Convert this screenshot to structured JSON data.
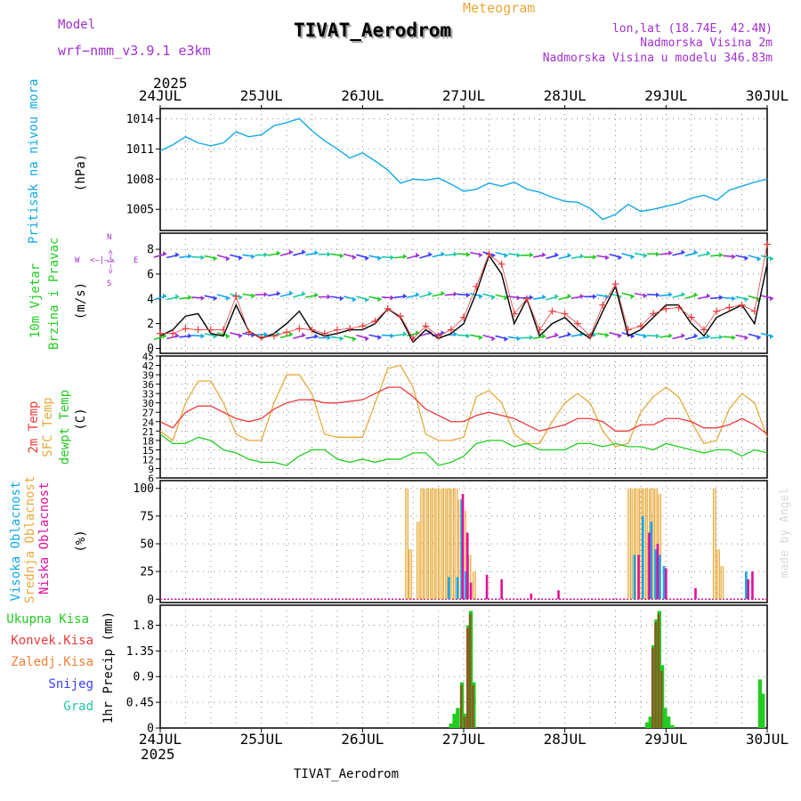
{
  "colors": {
    "purple": "#a030d0",
    "orange": "#e8a93a",
    "cyan": "#12a8e8",
    "green": "#22cc22",
    "red": "#e83c3c",
    "blue": "#3c3cff",
    "magenta": "#e0109a",
    "black": "#000000",
    "faint": "#d8d8d8",
    "teal": "#20c8a8"
  },
  "header": {
    "model_label": "Model",
    "model_name": "wrf−nmm_v3.9.1  e3km",
    "meteogram": "Meteogram",
    "station": "TIVAT_Aerodrom",
    "lonlat": "lon,lat (18.74E, 42.4N)",
    "height": "Nadmorska Visina 2m",
    "model_height": "Nadmorska Visina u modelu 346.83m",
    "footer": "TIVAT_Aerodrom",
    "credit": "made by Angel",
    "year": "2025"
  },
  "time_axis": {
    "labels": [
      "24JUL",
      "25JUL",
      "26JUL",
      "27JUL",
      "28JUL",
      "29JUL",
      "30JUL"
    ],
    "year": "2025"
  },
  "panels": {
    "pressure": {
      "title": "Pritisak na nivou mora",
      "unit": "(hPa)",
      "ticks": [
        "1005",
        "1008",
        "1011",
        "1014"
      ]
    },
    "wind": {
      "title1": "10m Vjetar",
      "title2": "Brzina i Pravac",
      "unit": "(m/s)",
      "ticks": [
        "0",
        "2",
        "4",
        "6",
        "8"
      ],
      "compass_w": "W",
      "compass_e": "E",
      "compass_n": "N",
      "compass_s": "S",
      "compass_h": "<—|—>",
      "compass_v": "<—|—>"
    },
    "temperature": {
      "title1": "2m Temp",
      "title2": "SFC Temp",
      "title3": "dewpt Temp",
      "unit": "(C)",
      "ticks": [
        "6",
        "9",
        "12",
        "15",
        "18",
        "21",
        "24",
        "27",
        "30",
        "33",
        "36",
        "39",
        "42",
        "45"
      ]
    },
    "clouds": {
      "title1": "Visoka Oblacnost",
      "title2": "Srednja Oblacnost",
      "title3": "Niska Oblacnost",
      "unit": "(%)",
      "ticks": [
        "0",
        "25",
        "50",
        "75",
        "100"
      ]
    },
    "precip": {
      "legend": [
        "Ukupna Kisa",
        "Konvek.Kisa",
        "Zaledj.Kisa",
        "Snijeg",
        "Grad"
      ],
      "unit": "1hr Precip (mm)",
      "ticks": [
        "0",
        "0.45",
        "0.9",
        "1.35",
        "1.8"
      ]
    }
  },
  "chart_data": [
    {
      "type": "line",
      "title": "Pritisak na nivou mora",
      "ylabel": "(hPa)",
      "x_unit": "hours from 24JUL 00UTC",
      "ylim": [
        1002.9,
        1015
      ],
      "series": [
        {
          "name": "SLP",
          "color": "#12a8e8",
          "x": [
            0,
            3,
            6,
            9,
            12,
            15,
            18,
            21,
            24,
            27,
            30,
            33,
            36,
            39,
            42,
            45,
            48,
            51,
            54,
            57,
            60,
            63,
            66,
            69,
            72,
            75,
            78,
            81,
            84,
            87,
            90,
            93,
            96,
            99,
            102,
            105,
            108,
            111,
            114,
            117,
            120,
            123,
            126,
            129,
            132,
            135,
            138,
            141,
            144
          ],
          "y": [
            1010.8,
            1011.4,
            1012.2,
            1011.6,
            1011.3,
            1011.6,
            1012.7,
            1012.2,
            1012.4,
            1013.3,
            1013.6,
            1014.0,
            1012.8,
            1011.8,
            1011.0,
            1010.1,
            1010.6,
            1009.8,
            1008.9,
            1007.6,
            1008.0,
            1007.9,
            1008.1,
            1007.5,
            1006.8,
            1007.0,
            1007.6,
            1007.3,
            1007.7,
            1007.0,
            1006.7,
            1006.2,
            1005.8,
            1005.7,
            1005.1,
            1004.0,
            1004.5,
            1005.5,
            1004.8,
            1005.0,
            1005.3,
            1005.6,
            1006.1,
            1006.4,
            1005.9,
            1006.9,
            1007.3,
            1007.7,
            1008.0
          ]
        }
      ]
    },
    {
      "type": "line",
      "title": "10m Vjetar Brzina i Pravac",
      "ylabel": "(m/s)",
      "ylim": [
        0,
        9
      ],
      "series": [
        {
          "name": "wind speed",
          "color": "#000000",
          "x": [
            0,
            3,
            6,
            9,
            12,
            15,
            18,
            21,
            24,
            27,
            30,
            33,
            36,
            39,
            42,
            45,
            48,
            51,
            54,
            57,
            60,
            63,
            66,
            69,
            72,
            75,
            78,
            81,
            84,
            87,
            90,
            93,
            96,
            99,
            102,
            105,
            108,
            111,
            114,
            117,
            120,
            123,
            126,
            129,
            132,
            135,
            138,
            141,
            144
          ],
          "y": [
            1.0,
            1.5,
            2.6,
            2.8,
            1.2,
            1.0,
            3.5,
            1.4,
            0.8,
            1.2,
            2.0,
            3.0,
            1.4,
            1.0,
            1.2,
            1.5,
            1.5,
            2.0,
            3.2,
            2.5,
            0.5,
            1.5,
            0.8,
            1.2,
            2.0,
            4.5,
            7.5,
            6.0,
            2.0,
            4.0,
            1.0,
            2.0,
            2.5,
            1.5,
            0.8,
            3.0,
            5.0,
            1.0,
            1.5,
            2.5,
            3.5,
            3.5,
            2.0,
            1.0,
            2.5,
            3.0,
            3.5,
            2.0,
            6.8
          ]
        },
        {
          "name": "wind gust",
          "color": "#e83c3c",
          "marker": "+",
          "x": [
            0,
            3,
            6,
            9,
            12,
            15,
            18,
            21,
            24,
            27,
            30,
            33,
            36,
            39,
            42,
            45,
            48,
            51,
            54,
            57,
            60,
            63,
            66,
            69,
            72,
            75,
            78,
            81,
            84,
            87,
            90,
            93,
            96,
            99,
            102,
            105,
            108,
            111,
            114,
            117,
            120,
            123,
            126,
            129,
            132,
            135,
            138,
            141,
            144
          ],
          "y": [
            1.2,
            1.2,
            1.6,
            1.5,
            1.5,
            1.5,
            4.2,
            1.3,
            0.9,
            1.0,
            1.3,
            1.6,
            1.5,
            1.2,
            1.5,
            1.6,
            1.8,
            2.2,
            3.2,
            2.6,
            0.8,
            1.8,
            1.0,
            1.5,
            2.5,
            5.0,
            7.6,
            6.8,
            2.8,
            4.0,
            1.5,
            3.0,
            2.8,
            2.0,
            1.0,
            3.5,
            5.2,
            1.5,
            1.8,
            2.8,
            3.2,
            3.3,
            2.5,
            1.5,
            3.0,
            3.3,
            3.5,
            3.0,
            8.4
          ]
        }
      ]
    },
    {
      "type": "line",
      "title": "2m Temp / SFC Temp / dewpt Temp",
      "ylabel": "(C)",
      "ylim": [
        6,
        45
      ],
      "series": [
        {
          "name": "2m Temp",
          "color": "#e83c3c",
          "x": [
            0,
            3,
            6,
            9,
            12,
            15,
            18,
            21,
            24,
            27,
            30,
            33,
            36,
            39,
            42,
            45,
            48,
            51,
            54,
            57,
            60,
            63,
            66,
            69,
            72,
            75,
            78,
            81,
            84,
            87,
            90,
            93,
            96,
            99,
            102,
            105,
            108,
            111,
            114,
            117,
            120,
            123,
            126,
            129,
            132,
            135,
            138,
            141,
            144
          ],
          "y": [
            24,
            22,
            27,
            29,
            29,
            27,
            25,
            24,
            25,
            28,
            30,
            31,
            31,
            30,
            30,
            30.5,
            31,
            33,
            35,
            35,
            32,
            28,
            26,
            24,
            24,
            26,
            27,
            26,
            25,
            23,
            21,
            22,
            23,
            25,
            25,
            24,
            21,
            21,
            23,
            23,
            25,
            25,
            24,
            22,
            22,
            23,
            25,
            23,
            20
          ]
        },
        {
          "name": "SFC Temp",
          "color": "#e8a93a",
          "x": [
            0,
            3,
            6,
            9,
            12,
            15,
            18,
            21,
            24,
            27,
            30,
            33,
            36,
            39,
            42,
            45,
            48,
            51,
            54,
            57,
            60,
            63,
            66,
            69,
            72,
            75,
            78,
            81,
            84,
            87,
            90,
            93,
            96,
            99,
            102,
            105,
            108,
            111,
            114,
            117,
            120,
            123,
            126,
            129,
            132,
            135,
            138,
            141,
            144
          ],
          "y": [
            21,
            18,
            30,
            37,
            37,
            30,
            20,
            18,
            18,
            30,
            39,
            39,
            33,
            20,
            19,
            19,
            19,
            30,
            41,
            42,
            35,
            20,
            18,
            18,
            19,
            32,
            34,
            30,
            20,
            17,
            17,
            24,
            30,
            33,
            30,
            21,
            16,
            17,
            27,
            32,
            35,
            32,
            24,
            17,
            18,
            28,
            33,
            30,
            19
          ]
        },
        {
          "name": "dewpt Temp",
          "color": "#22cc22",
          "x": [
            0,
            3,
            6,
            9,
            12,
            15,
            18,
            21,
            24,
            27,
            30,
            33,
            36,
            39,
            42,
            45,
            48,
            51,
            54,
            57,
            60,
            63,
            66,
            69,
            72,
            75,
            78,
            81,
            84,
            87,
            90,
            93,
            96,
            99,
            102,
            105,
            108,
            111,
            114,
            117,
            120,
            123,
            126,
            129,
            132,
            135,
            138,
            141,
            144
          ],
          "y": [
            20,
            17,
            17,
            19,
            18,
            15,
            14,
            12,
            11,
            11,
            10,
            13,
            15,
            15,
            12,
            11,
            12,
            11,
            12,
            12,
            14,
            14,
            10,
            11,
            13,
            17,
            18,
            18,
            16,
            17,
            15,
            15,
            15,
            17,
            17,
            16,
            17,
            16,
            16,
            15,
            17,
            16,
            15,
            14,
            15,
            15,
            13,
            15,
            14
          ]
        }
      ]
    },
    {
      "type": "bar",
      "title": "Oblacnost",
      "ylabel": "(%)",
      "ylim": [
        0,
        100
      ],
      "series": [
        {
          "name": "Srednja Oblacnost",
          "color": "#e8a93a",
          "x": [
            58.5,
            59.3,
            61.2,
            62.1,
            63,
            63.9,
            64.8,
            65.7,
            66.6,
            67.5,
            68.4,
            69.3,
            70.2,
            71.1,
            72.2,
            73.4,
            74.5,
            111.3,
            112.2,
            113.1,
            114,
            114.9,
            115.8,
            116.7,
            117.6,
            118.5,
            131.5,
            132.4,
            133.3
          ],
          "y": [
            100,
            45,
            70,
            100,
            100,
            100,
            100,
            100,
            100,
            100,
            100,
            100,
            100,
            90,
            80,
            40,
            25,
            100,
            100,
            100,
            100,
            100,
            100,
            100,
            100,
            95,
            100,
            45,
            30
          ]
        },
        {
          "name": "Visoka Oblacnost",
          "color": "#12a8e8",
          "x": [
            68.5,
            70.5,
            71.5,
            72.5,
            112.5,
            114.5,
            116.5,
            117.5,
            118.5,
            119.5,
            139
          ],
          "y": [
            20,
            20,
            90,
            25,
            40,
            75,
            70,
            45,
            40,
            30,
            25
          ]
        },
        {
          "name": "Niska Oblacnost",
          "color": "#e0109a",
          "x": [
            71.8,
            72.9,
            73.7,
            77.5,
            81,
            88,
            94.5,
            113.5,
            116,
            118,
            120,
            127,
            139.5,
            140.5
          ],
          "y": [
            95,
            60,
            15,
            22,
            18,
            5,
            8,
            40,
            60,
            50,
            28,
            10,
            18,
            25
          ]
        }
      ]
    },
    {
      "type": "bar",
      "title": "1hr Precip",
      "ylabel": "(mm)",
      "ylim": [
        0,
        2.1
      ],
      "series": [
        {
          "name": "Ukupna Kisa",
          "color": "#22cc22",
          "x": [
            69,
            69.8,
            70.6,
            71.6,
            72.4,
            73.1,
            73.7,
            74.4,
            115.5,
            116.3,
            117,
            117.7,
            118.4,
            119.1,
            119.8,
            120.6,
            121.5,
            142.3,
            143
          ],
          "y": [
            0.08,
            0.25,
            0.35,
            0.8,
            0.25,
            1.8,
            2.05,
            0.8,
            0.1,
            0.2,
            1.45,
            1.9,
            2.05,
            1.1,
            0.35,
            0.2,
            0.05,
            0.85,
            0.6
          ]
        },
        {
          "name": "Konvek.Kisa",
          "color": "#e83c3c",
          "x": [
            71.6,
            72.4,
            73.1,
            73.7,
            74.4,
            117,
            117.7,
            118.4,
            119.1
          ],
          "y": [
            0.75,
            0.2,
            1.75,
            2.0,
            0.75,
            1.4,
            1.85,
            2.0,
            1.0
          ]
        }
      ]
    }
  ]
}
